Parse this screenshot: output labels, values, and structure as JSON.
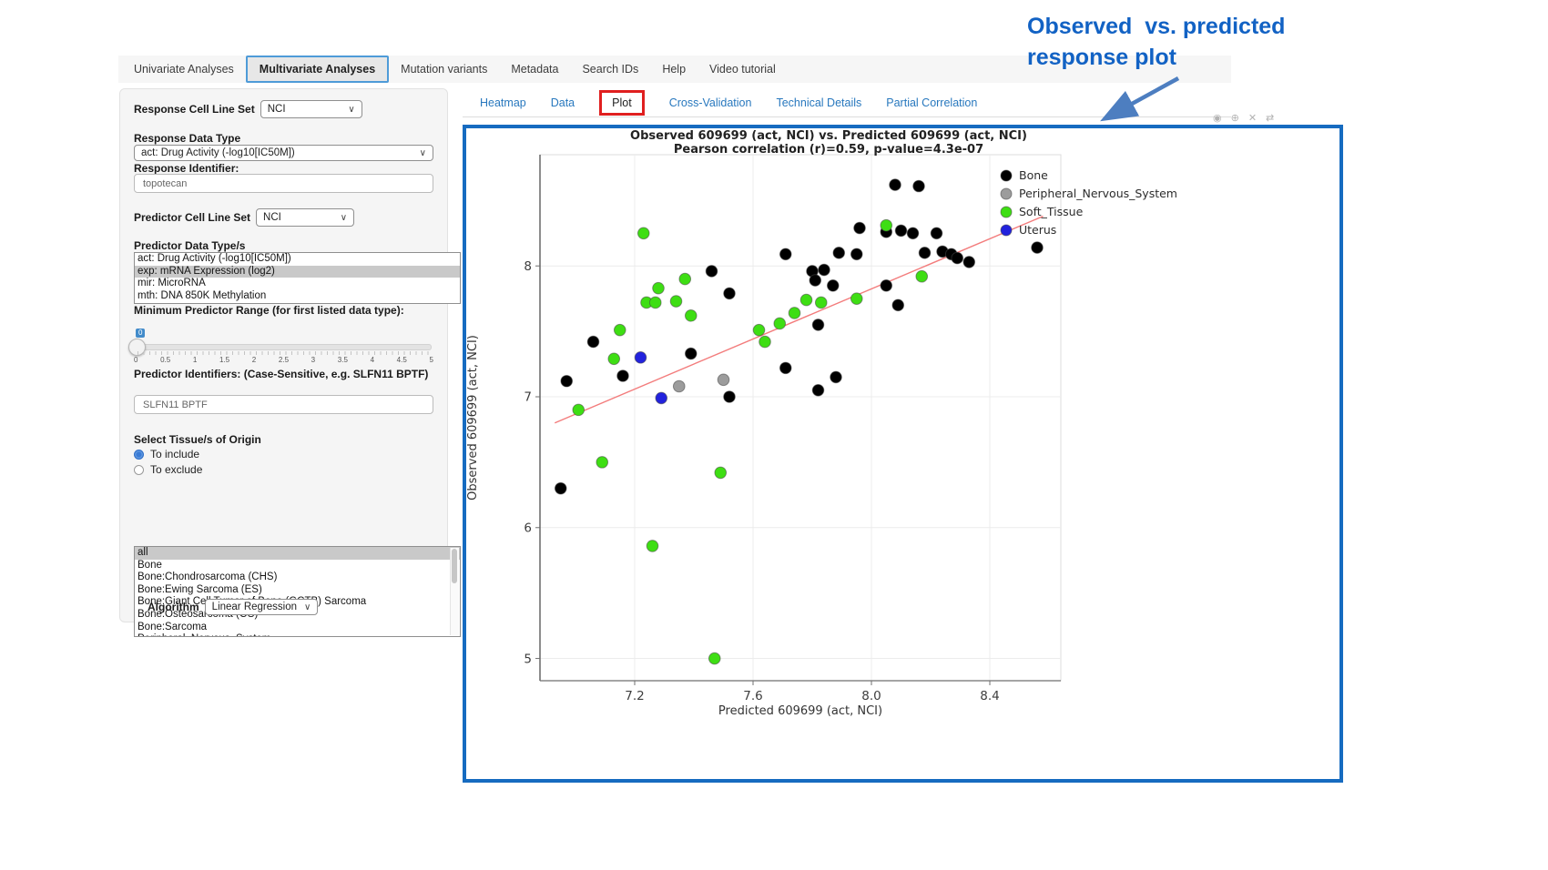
{
  "annotation": {
    "line1": "Observed  vs. predicted",
    "line2": "response plot"
  },
  "colors": {
    "annotation_blue": "#1262c4",
    "plot_border_blue": "#166bc0",
    "red_highlight_box": "#e01f1f",
    "link_blue": "#2878be",
    "nav_active_border": "#4e9bd8"
  },
  "nav": {
    "items": [
      {
        "label": "Univariate Analyses",
        "active": false
      },
      {
        "label": "Multivariate Analyses",
        "active": true
      },
      {
        "label": "Mutation variants",
        "active": false
      },
      {
        "label": "Metadata",
        "active": false
      },
      {
        "label": "Search IDs",
        "active": false
      },
      {
        "label": "Help",
        "active": false
      },
      {
        "label": "Video tutorial",
        "active": false
      }
    ]
  },
  "subtabs": {
    "items": [
      {
        "label": "Heatmap",
        "active": false
      },
      {
        "label": "Data",
        "active": false
      },
      {
        "label": "Plot",
        "active": true
      },
      {
        "label": "Cross-Validation",
        "active": false
      },
      {
        "label": "Technical Details",
        "active": false
      },
      {
        "label": "Partial Correlation",
        "active": false
      }
    ]
  },
  "modebar": {
    "icons": [
      {
        "name": "camera-icon",
        "glyph": "◉"
      },
      {
        "name": "zoom-icon",
        "glyph": "⊕"
      },
      {
        "name": "close-icon",
        "glyph": "✕"
      },
      {
        "name": "pan-icon",
        "glyph": "⇄"
      }
    ]
  },
  "sidebar": {
    "response_cell_line_set_label": "Response Cell Line Set",
    "response_cell_line_set_value": "NCI",
    "response_data_type_label": "Response Data Type",
    "response_data_type_value": "act: Drug Activity (-log10[IC50M])",
    "response_identifier_label": "Response Identifier:",
    "response_identifier_value": "topotecan",
    "predictor_cell_line_set_label": "Predictor Cell Line Set",
    "predictor_cell_line_set_value": "NCI",
    "predictor_data_types_label": "Predictor Data Type/s",
    "predictor_data_types": [
      {
        "label": "act: Drug Activity (-log10[IC50M])",
        "selected": false
      },
      {
        "label": "exp: mRNA Expression (log2)",
        "selected": true
      },
      {
        "label": "mir: MicroRNA",
        "selected": false
      },
      {
        "label": "mth: DNA 850K Methylation",
        "selected": false
      }
    ],
    "min_predictor_range_label": "Minimum Predictor Range (for first listed data type):",
    "slider": {
      "value": "0",
      "ticks": [
        "0",
        "0.5",
        "1",
        "1.5",
        "2",
        "2.5",
        "3",
        "3.5",
        "4",
        "4.5",
        "5"
      ]
    },
    "predictor_identifiers_label": "Predictor Identifiers: (Case-Sensitive, e.g. SLFN11 BPTF)",
    "predictor_identifiers_value": "SLFN11 BPTF",
    "tissue_label": "Select Tissue/s of Origin",
    "radio_include": "To include",
    "radio_exclude": "To exclude",
    "tissues": [
      {
        "label": "all",
        "selected": true
      },
      {
        "label": "Bone",
        "selected": false
      },
      {
        "label": "Bone:Chondrosarcoma (CHS)",
        "selected": false
      },
      {
        "label": "Bone:Ewing Sarcoma (ES)",
        "selected": false
      },
      {
        "label": "Bone:Giant Cell Tumor of Bone (GCTB) Sarcoma",
        "selected": false
      },
      {
        "label": "Bone:Osteosarcoma (OS)",
        "selected": false
      },
      {
        "label": "Bone:Sarcoma",
        "selected": false
      },
      {
        "label": "Peripheral_Nervous_System",
        "selected": false
      }
    ],
    "algorithm_label": "Algorithm",
    "algorithm_value": "Linear Regression"
  },
  "chart_data": {
    "type": "scatter",
    "title": "Observed 609699 (act, NCI) vs. Predicted 609699 (act, NCI)",
    "subtitle": "Pearson correlation (r)=0.59, p-value=4.3e-07",
    "xlabel": "Predicted 609699 (act, NCI)",
    "ylabel": "Observed 609699 (act, NCI)",
    "xlim": [
      6.88,
      8.64
    ],
    "ylim": [
      4.83,
      8.85
    ],
    "xticks": [
      {
        "v": 7.2,
        "label": "7.2"
      },
      {
        "v": 7.6,
        "label": "7.6"
      },
      {
        "v": 8.0,
        "label": "8.0"
      },
      {
        "v": 8.4,
        "label": "8.4"
      }
    ],
    "yticks": [
      {
        "v": 5,
        "label": "5"
      },
      {
        "v": 6,
        "label": "6"
      },
      {
        "v": 7,
        "label": "7"
      },
      {
        "v": 8,
        "label": "8"
      }
    ],
    "grid": true,
    "legend_position": "right",
    "trendline": {
      "x": [
        6.93,
        8.58
      ],
      "y": [
        6.8,
        8.38
      ],
      "color": "#f37c7c"
    },
    "series": [
      {
        "name": "Bone",
        "color": "#000000",
        "points": [
          [
            6.95,
            6.3
          ],
          [
            6.97,
            7.12
          ],
          [
            7.06,
            7.42
          ],
          [
            7.16,
            7.16
          ],
          [
            7.39,
            7.33
          ],
          [
            7.46,
            7.96
          ],
          [
            7.52,
            7.79
          ],
          [
            7.52,
            7.0
          ],
          [
            7.71,
            8.09
          ],
          [
            7.71,
            7.22
          ],
          [
            7.8,
            7.96
          ],
          [
            7.84,
            7.97
          ],
          [
            7.81,
            7.89
          ],
          [
            7.87,
            7.85
          ],
          [
            7.82,
            7.55
          ],
          [
            7.82,
            7.05
          ],
          [
            7.88,
            7.15
          ],
          [
            7.89,
            8.1
          ],
          [
            7.95,
            8.09
          ],
          [
            7.96,
            8.29
          ],
          [
            8.05,
            8.26
          ],
          [
            8.05,
            7.85
          ],
          [
            8.09,
            7.7
          ],
          [
            8.08,
            8.62
          ],
          [
            8.16,
            8.61
          ],
          [
            8.1,
            8.27
          ],
          [
            8.14,
            8.25
          ],
          [
            8.18,
            8.1
          ],
          [
            8.22,
            8.25
          ],
          [
            8.24,
            8.11
          ],
          [
            8.27,
            8.09
          ],
          [
            8.29,
            8.06
          ],
          [
            8.33,
            8.03
          ],
          [
            8.56,
            8.14
          ]
        ]
      },
      {
        "name": "Peripheral_Nervous_System",
        "color": "#9c9c9c",
        "points": [
          [
            7.35,
            7.08
          ],
          [
            7.5,
            7.13
          ]
        ]
      },
      {
        "name": "Soft_Tissue",
        "color": "#3ede13",
        "points": [
          [
            7.01,
            6.9
          ],
          [
            7.09,
            6.5
          ],
          [
            7.13,
            7.29
          ],
          [
            7.15,
            7.51
          ],
          [
            7.23,
            8.25
          ],
          [
            7.24,
            7.72
          ],
          [
            7.27,
            7.72
          ],
          [
            7.28,
            7.83
          ],
          [
            7.26,
            5.86
          ],
          [
            7.34,
            7.73
          ],
          [
            7.37,
            7.9
          ],
          [
            7.39,
            7.62
          ],
          [
            7.47,
            5.0
          ],
          [
            7.49,
            6.42
          ],
          [
            7.62,
            7.51
          ],
          [
            7.64,
            7.42
          ],
          [
            7.69,
            7.56
          ],
          [
            7.74,
            7.64
          ],
          [
            7.78,
            7.74
          ],
          [
            7.83,
            7.72
          ],
          [
            7.95,
            7.75
          ],
          [
            8.05,
            8.31
          ],
          [
            8.17,
            7.92
          ]
        ]
      },
      {
        "name": "Uterus",
        "color": "#2222dd",
        "points": [
          [
            7.22,
            7.3
          ],
          [
            7.29,
            6.99
          ]
        ]
      }
    ]
  }
}
